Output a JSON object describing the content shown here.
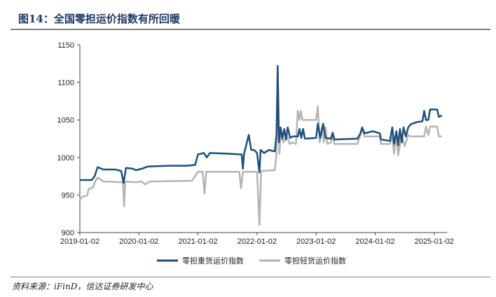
{
  "title": "图14：全国零担运价指数有所回暖",
  "source": "资料来源：iFinD，信达证券研发中心",
  "chart_data": {
    "type": "line",
    "title": "全国零担运价指数有所回暖",
    "xlabel": "",
    "ylabel": "",
    "ylim": [
      900,
      1150
    ],
    "yticks": [
      900,
      950,
      1000,
      1050,
      1100,
      1150
    ],
    "xticks": [
      {
        "v": 2019.0,
        "label": "2019-01-02"
      },
      {
        "v": 2020.0,
        "label": "2020-01-02"
      },
      {
        "v": 2021.0,
        "label": "2021-01-02"
      },
      {
        "v": 2022.0,
        "label": "2022-01-02"
      },
      {
        "v": 2023.0,
        "label": "2023-01-02"
      },
      {
        "v": 2024.0,
        "label": "2024-01-02"
      },
      {
        "v": 2025.0,
        "label": "2025-01-02"
      }
    ],
    "xlim": [
      2019.0,
      2025.15
    ],
    "grid": false,
    "legend_position": "bottom",
    "series": [
      {
        "name": "零担重货运价指数",
        "color": "#1f4e79",
        "points": [
          [
            2019.0,
            970
          ],
          [
            2019.2,
            970
          ],
          [
            2019.25,
            975
          ],
          [
            2019.3,
            987
          ],
          [
            2019.4,
            984
          ],
          [
            2019.6,
            984
          ],
          [
            2019.7,
            982
          ],
          [
            2019.74,
            966
          ],
          [
            2019.78,
            986
          ],
          [
            2019.9,
            985
          ],
          [
            2019.95,
            983
          ],
          [
            2020.05,
            985
          ],
          [
            2020.15,
            988
          ],
          [
            2020.5,
            989
          ],
          [
            2020.8,
            989
          ],
          [
            2020.95,
            990
          ],
          [
            2021.0,
            1004
          ],
          [
            2021.1,
            1006
          ],
          [
            2021.15,
            1000
          ],
          [
            2021.2,
            1006
          ],
          [
            2021.5,
            1005
          ],
          [
            2021.74,
            1004
          ],
          [
            2021.76,
            985
          ],
          [
            2021.78,
            1005
          ],
          [
            2021.86,
            1030
          ],
          [
            2021.9,
            1010
          ],
          [
            2021.95,
            1010
          ],
          [
            2022.0,
            1006
          ],
          [
            2022.04,
            980
          ],
          [
            2022.06,
            1010
          ],
          [
            2022.12,
            1006
          ],
          [
            2022.2,
            1010
          ],
          [
            2022.3,
            1008
          ],
          [
            2022.33,
            1030
          ],
          [
            2022.35,
            1122
          ],
          [
            2022.37,
            1020
          ],
          [
            2022.4,
            1040
          ],
          [
            2022.43,
            1025
          ],
          [
            2022.46,
            1038
          ],
          [
            2022.49,
            1024
          ],
          [
            2022.52,
            1040
          ],
          [
            2022.56,
            1026
          ],
          [
            2022.6,
            1028
          ],
          [
            2022.69,
            1028
          ],
          [
            2022.72,
            1038
          ],
          [
            2022.75,
            1026
          ],
          [
            2022.78,
            1038
          ],
          [
            2022.81,
            1025
          ],
          [
            2023.0,
            1026
          ],
          [
            2023.03,
            1045
          ],
          [
            2023.07,
            1026
          ],
          [
            2023.12,
            1045
          ],
          [
            2023.16,
            1026
          ],
          [
            2023.25,
            1025
          ],
          [
            2023.28,
            1033
          ],
          [
            2023.31,
            1024
          ],
          [
            2023.7,
            1025
          ],
          [
            2023.75,
            1032
          ],
          [
            2023.78,
            1040
          ],
          [
            2023.82,
            1032
          ],
          [
            2023.96,
            1035
          ],
          [
            2024.08,
            1032
          ],
          [
            2024.1,
            1024
          ],
          [
            2024.25,
            1022
          ],
          [
            2024.29,
            1040
          ],
          [
            2024.32,
            1018
          ],
          [
            2024.36,
            1035
          ],
          [
            2024.39,
            1016
          ],
          [
            2024.42,
            1038
          ],
          [
            2024.45,
            1020
          ],
          [
            2024.48,
            1040
          ],
          [
            2024.52,
            1028
          ],
          [
            2024.56,
            1040
          ],
          [
            2024.6,
            1044
          ],
          [
            2024.7,
            1047
          ],
          [
            2024.8,
            1048
          ],
          [
            2024.83,
            1062
          ],
          [
            2024.86,
            1050
          ],
          [
            2024.9,
            1050
          ],
          [
            2024.93,
            1064
          ],
          [
            2025.05,
            1064
          ],
          [
            2025.08,
            1054
          ],
          [
            2025.13,
            1056
          ]
        ]
      },
      {
        "name": "零担轻货运价指数",
        "color": "#b4b4b4",
        "points": [
          [
            2019.0,
            944
          ],
          [
            2019.05,
            948
          ],
          [
            2019.12,
            949
          ],
          [
            2019.15,
            958
          ],
          [
            2019.22,
            960
          ],
          [
            2019.27,
            970
          ],
          [
            2019.3,
            973
          ],
          [
            2019.4,
            968
          ],
          [
            2019.73,
            967
          ],
          [
            2019.75,
            935
          ],
          [
            2019.77,
            968
          ],
          [
            2019.95,
            967
          ],
          [
            2020.05,
            968
          ],
          [
            2020.1,
            964
          ],
          [
            2020.18,
            968
          ],
          [
            2020.9,
            969
          ],
          [
            2021.0,
            981
          ],
          [
            2021.08,
            981
          ],
          [
            2021.11,
            952
          ],
          [
            2021.14,
            981
          ],
          [
            2021.7,
            981
          ],
          [
            2021.73,
            959
          ],
          [
            2021.76,
            981
          ],
          [
            2022.0,
            981
          ],
          [
            2022.04,
            910
          ],
          [
            2022.07,
            982
          ],
          [
            2022.3,
            983
          ],
          [
            2022.33,
            1005
          ],
          [
            2022.35,
            1115
          ],
          [
            2022.38,
            1005
          ],
          [
            2022.4,
            1030
          ],
          [
            2022.45,
            1020
          ],
          [
            2022.5,
            1030
          ],
          [
            2022.55,
            1018
          ],
          [
            2022.6,
            1020
          ],
          [
            2022.66,
            1018
          ],
          [
            2022.69,
            1062
          ],
          [
            2022.72,
            1050
          ],
          [
            2022.74,
            1062
          ],
          [
            2022.77,
            1050
          ],
          [
            2023.0,
            1050
          ],
          [
            2023.03,
            1068
          ],
          [
            2023.06,
            1020
          ],
          [
            2023.1,
            1040
          ],
          [
            2023.13,
            1020
          ],
          [
            2023.16,
            1040
          ],
          [
            2023.19,
            1018
          ],
          [
            2023.25,
            1020
          ],
          [
            2023.28,
            1030
          ],
          [
            2023.31,
            1018
          ],
          [
            2023.7,
            1018
          ],
          [
            2023.75,
            1030
          ],
          [
            2023.78,
            1038
          ],
          [
            2023.82,
            1028
          ],
          [
            2024.08,
            1028
          ],
          [
            2024.1,
            1018
          ],
          [
            2024.25,
            1018
          ],
          [
            2024.29,
            1028
          ],
          [
            2024.32,
            1005
          ],
          [
            2024.36,
            1030
          ],
          [
            2024.39,
            1003
          ],
          [
            2024.45,
            1030
          ],
          [
            2024.5,
            1015
          ],
          [
            2024.56,
            1030
          ],
          [
            2024.6,
            1028
          ],
          [
            2024.83,
            1028
          ],
          [
            2024.86,
            1041
          ],
          [
            2024.9,
            1030
          ],
          [
            2024.93,
            1041
          ],
          [
            2025.05,
            1041
          ],
          [
            2025.08,
            1028
          ],
          [
            2025.13,
            1028
          ]
        ]
      }
    ]
  }
}
